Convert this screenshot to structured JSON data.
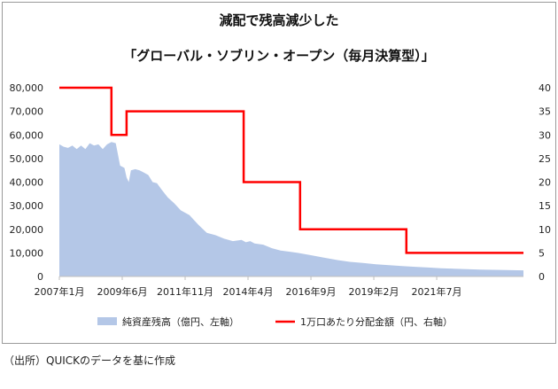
{
  "title_line1": "減配で残高減少した",
  "title_line2": "「グローバル・ソブリン・オープン（毎月決算型）」",
  "source": "（出所）QUICKのデータを基に作成",
  "chart_data": {
    "type": "area+step-line",
    "x_tick_labels": [
      "2007年1月",
      "2009年6月",
      "2011年11月",
      "2014年4月",
      "2016年9月",
      "2019年2月",
      "2021年7月"
    ],
    "x_tick_months": [
      0,
      29,
      58,
      87,
      116,
      145,
      174
    ],
    "x_range_months": [
      0,
      214
    ],
    "y_left": {
      "ticks": [
        "0",
        "10,000",
        "20,000",
        "30,000",
        "40,000",
        "50,000",
        "60,000",
        "70,000",
        "80,000"
      ],
      "range": [
        0,
        80000
      ]
    },
    "y_right": {
      "ticks": [
        "0",
        "5",
        "10",
        "15",
        "20",
        "25",
        "30",
        "35",
        "40"
      ],
      "range": [
        0,
        40
      ]
    },
    "series": [
      {
        "name": "純資産残高（億円、左軸）",
        "type": "area",
        "color": "#b4c7e7",
        "points": [
          [
            0,
            56000
          ],
          [
            2,
            55000
          ],
          [
            4,
            54500
          ],
          [
            6,
            55500
          ],
          [
            8,
            54000
          ],
          [
            10,
            55500
          ],
          [
            12,
            54000
          ],
          [
            14,
            56500
          ],
          [
            16,
            55500
          ],
          [
            18,
            56000
          ],
          [
            20,
            54000
          ],
          [
            22,
            56000
          ],
          [
            24,
            57000
          ],
          [
            26,
            56500
          ],
          [
            28,
            47000
          ],
          [
            30,
            46000
          ],
          [
            31,
            42000
          ],
          [
            32,
            40000
          ],
          [
            33,
            45000
          ],
          [
            35,
            45500
          ],
          [
            37,
            45000
          ],
          [
            39,
            44000
          ],
          [
            41,
            43000
          ],
          [
            43,
            40000
          ],
          [
            45,
            39500
          ],
          [
            47,
            37000
          ],
          [
            50,
            33500
          ],
          [
            53,
            31000
          ],
          [
            56,
            28000
          ],
          [
            60,
            26000
          ],
          [
            64,
            22000
          ],
          [
            68,
            18500
          ],
          [
            72,
            17500
          ],
          [
            76,
            16000
          ],
          [
            80,
            15000
          ],
          [
            84,
            15500
          ],
          [
            86,
            14500
          ],
          [
            88,
            15000
          ],
          [
            90,
            14000
          ],
          [
            94,
            13500
          ],
          [
            98,
            12000
          ],
          [
            102,
            11000
          ],
          [
            106,
            10500
          ],
          [
            110,
            10000
          ],
          [
            116,
            9000
          ],
          [
            122,
            8000
          ],
          [
            128,
            7000
          ],
          [
            134,
            6200
          ],
          [
            140,
            5700
          ],
          [
            146,
            5200
          ],
          [
            152,
            4800
          ],
          [
            158,
            4400
          ],
          [
            164,
            4100
          ],
          [
            170,
            3800
          ],
          [
            176,
            3500
          ],
          [
            182,
            3300
          ],
          [
            188,
            3100
          ],
          [
            194,
            2900
          ],
          [
            200,
            2800
          ],
          [
            206,
            2700
          ],
          [
            214,
            2600
          ]
        ]
      },
      {
        "name": "1万口あたり分配金額（円、右軸）",
        "type": "step",
        "color": "#ff0000",
        "points": [
          [
            0,
            40
          ],
          [
            24,
            40
          ],
          [
            24,
            30
          ],
          [
            31,
            30
          ],
          [
            31,
            35
          ],
          [
            85,
            35
          ],
          [
            85,
            20
          ],
          [
            111,
            20
          ],
          [
            111,
            10
          ],
          [
            160,
            10
          ],
          [
            160,
            5
          ],
          [
            214,
            5
          ]
        ]
      }
    ],
    "legend": "bottom"
  }
}
